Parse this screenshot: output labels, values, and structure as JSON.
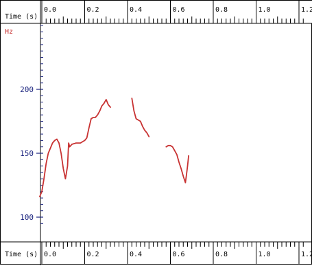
{
  "window": {
    "top_ruler_label": "Time (s)",
    "bottom_ruler_label": "Time (s)",
    "y_unit_label": "Hz"
  },
  "ruler": {
    "major_ticks": [
      "0.0",
      "0.2",
      "0.4",
      "0.6",
      "0.8",
      "1.0",
      "1.2"
    ]
  },
  "colors": {
    "curve": "#c83232",
    "y_tick_text": "#1a237e",
    "unit_label": "#c83232",
    "ruler_text": "#000000"
  },
  "chart_data": {
    "type": "line",
    "title": "",
    "xlabel": "Time (s)",
    "ylabel": "Hz",
    "xlim": [
      0.0,
      1.22
    ],
    "ylim": [
      90,
      250
    ],
    "y_ticks": [
      100,
      150,
      200
    ],
    "x_ticks": [
      0.0,
      0.2,
      0.4,
      0.6,
      0.8,
      1.0,
      1.2
    ],
    "series": [
      {
        "segments": [
          [
            [
              -0.01,
              116
            ],
            [
              0.0,
              120
            ],
            [
              0.01,
              130
            ],
            [
              0.02,
              142
            ],
            [
              0.03,
              150
            ],
            [
              0.04,
              154
            ],
            [
              0.05,
              158
            ],
            [
              0.06,
              160
            ],
            [
              0.07,
              161
            ],
            [
              0.08,
              158
            ],
            [
              0.09,
              150
            ],
            [
              0.1,
              138
            ],
            [
              0.11,
              130
            ],
            [
              0.12,
              140
            ],
            [
              0.125,
              158
            ],
            [
              0.13,
              155
            ],
            [
              0.14,
              157
            ],
            [
              0.16,
              158
            ],
            [
              0.18,
              158
            ],
            [
              0.2,
              160
            ],
            [
              0.21,
              162
            ],
            [
              0.22,
              170
            ],
            [
              0.23,
              177
            ],
            [
              0.24,
              178
            ],
            [
              0.25,
              178
            ],
            [
              0.26,
              180
            ],
            [
              0.27,
              183
            ],
            [
              0.28,
              187
            ],
            [
              0.29,
              189
            ],
            [
              0.3,
              192
            ],
            [
              0.31,
              188
            ],
            [
              0.32,
              186
            ]
          ],
          [
            [
              0.42,
              193
            ],
            [
              0.43,
              183
            ],
            [
              0.44,
              177
            ],
            [
              0.45,
              176
            ],
            [
              0.46,
              175
            ],
            [
              0.47,
              171
            ],
            [
              0.48,
              168
            ],
            [
              0.49,
              166
            ],
            [
              0.5,
              163
            ]
          ],
          [
            [
              0.58,
              155
            ],
            [
              0.59,
              156
            ],
            [
              0.6,
              156
            ],
            [
              0.61,
              155
            ],
            [
              0.62,
              152
            ],
            [
              0.63,
              149
            ],
            [
              0.64,
              143
            ],
            [
              0.65,
              138
            ],
            [
              0.66,
              132
            ],
            [
              0.67,
              127
            ],
            [
              0.675,
              133
            ],
            [
              0.68,
              140
            ],
            [
              0.685,
              148
            ]
          ]
        ]
      }
    ]
  }
}
